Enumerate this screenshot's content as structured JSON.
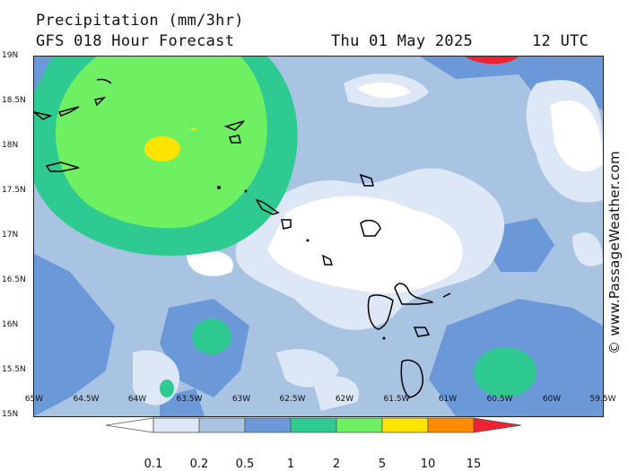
{
  "header": {
    "title": "Precipitation (mm/3hr)",
    "subtitle": "GFS 018 Hour Forecast",
    "date": "Thu 01 May 2025",
    "time": "12 UTC"
  },
  "credit": "© www.PassageWeather.com",
  "axes": {
    "latitudes": [
      "19N",
      "18.5N",
      "18N",
      "17.5N",
      "17N",
      "16.5N",
      "16N",
      "15.5N",
      "15N"
    ],
    "longitudes": [
      "65W",
      "64.5W",
      "64W",
      "63.5W",
      "63W",
      "62.5W",
      "62W",
      "61.5W",
      "61W",
      "60.5W",
      "60W",
      "59.5W"
    ]
  },
  "legend": {
    "labels": [
      "0.1",
      "0.2",
      "0.5",
      "1",
      "2",
      "5",
      "10",
      "15"
    ],
    "colors": [
      "#ffffff",
      "#dde7f5",
      "#a9c3e3",
      "#6a98d8",
      "#2fca92",
      "#6ef062",
      "#ffe400",
      "#ff8c00",
      "#ee2233"
    ]
  }
}
